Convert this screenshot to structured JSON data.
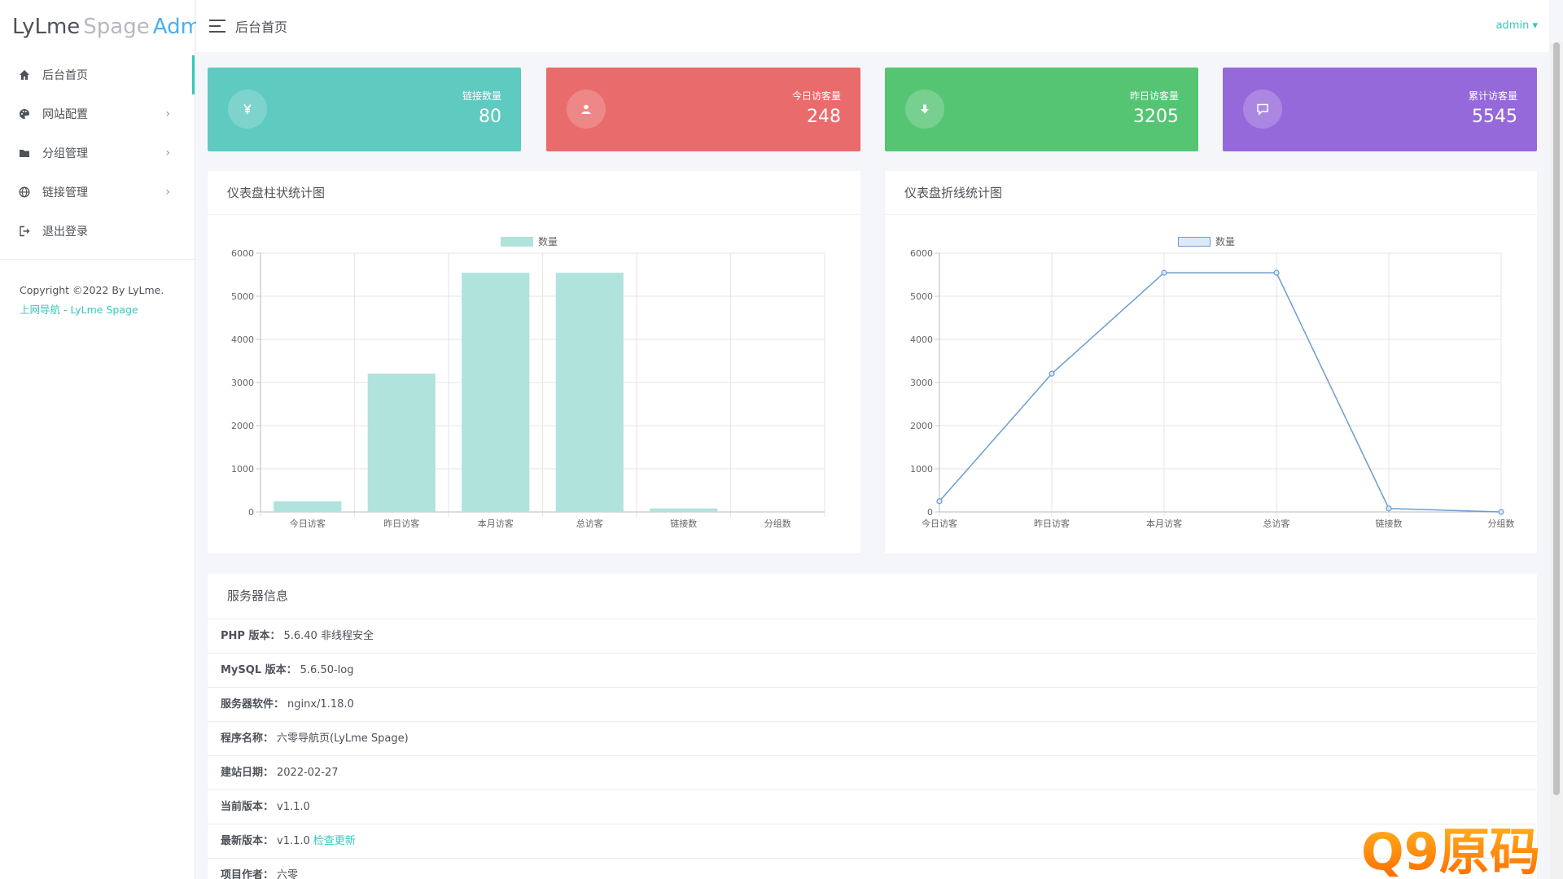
{
  "logo": {
    "part1": "LyLme",
    "part2": "Spage",
    "part3": "Admin"
  },
  "header": {
    "title": "后台首页",
    "user": "admin"
  },
  "sidebar": {
    "items": [
      {
        "label": "后台首页",
        "icon": "home-icon"
      },
      {
        "label": "网站配置",
        "icon": "palette-icon"
      },
      {
        "label": "分组管理",
        "icon": "folder-icon"
      },
      {
        "label": "链接管理",
        "icon": "globe-icon"
      },
      {
        "label": "退出登录",
        "icon": "logout-icon"
      }
    ],
    "copyright": "Copyright ©2022 By LyLme.",
    "link": "上网导航 - LyLme Spage"
  },
  "stats": [
    {
      "label": "链接数量",
      "value": "80",
      "color": "#5ecac0",
      "icon": "yen-icon"
    },
    {
      "label": "今日访客量",
      "value": "248",
      "color": "#ea6b6b",
      "icon": "user-icon"
    },
    {
      "label": "昨日访客量",
      "value": "3205",
      "color": "#55c574",
      "icon": "download-icon"
    },
    {
      "label": "累计访客量",
      "value": "5545",
      "color": "#9669db",
      "icon": "comment-icon"
    }
  ],
  "panels": {
    "bar_title": "仪表盘柱状统计图",
    "line_title": "仪表盘折线统计图",
    "server_title": "服务器信息"
  },
  "chart_data": [
    {
      "type": "bar",
      "categories": [
        "今日访客",
        "昨日访客",
        "本月访客",
        "总访客",
        "链接数",
        "分组数"
      ],
      "series": [
        {
          "name": "数量",
          "values": [
            248,
            3205,
            5545,
            5545,
            80,
            0
          ]
        }
      ],
      "ylim": [
        0,
        6000
      ],
      "yticks": [
        "0",
        "1000",
        "2000",
        "3000",
        "4000",
        "5000",
        "6000"
      ],
      "grid": true,
      "legend": "top-center",
      "color": "#b0e3db"
    },
    {
      "type": "line",
      "categories": [
        "今日访客",
        "昨日访客",
        "本月访客",
        "总访客",
        "链接数",
        "分组数"
      ],
      "series": [
        {
          "name": "数量",
          "values": [
            248,
            3205,
            5545,
            5545,
            80,
            0
          ]
        }
      ],
      "ylim": [
        0,
        6000
      ],
      "yticks": [
        "0",
        "1000",
        "2000",
        "3000",
        "4000",
        "5000",
        "6000"
      ],
      "grid": true,
      "legend": "top-center",
      "color": "#6d9ccf"
    }
  ],
  "server_info": [
    {
      "key": "PHP 版本：",
      "value": "5.6.40 非线程安全"
    },
    {
      "key": "MySQL 版本：",
      "value": "5.6.50-log"
    },
    {
      "key": "服务器软件：",
      "value": "nginx/1.18.0"
    },
    {
      "key": "程序名称：",
      "value": "六零导航页(LyLme Spage)"
    },
    {
      "key": "建站日期：",
      "value": "2022-02-27"
    },
    {
      "key": "当前版本：",
      "value": "v1.1.0"
    },
    {
      "key": "最新版本：",
      "value": "v1.1.0",
      "action": "检查更新"
    },
    {
      "key": "项目作者：",
      "value": "六零"
    }
  ],
  "watermark": {
    "text": "Q9原码"
  }
}
